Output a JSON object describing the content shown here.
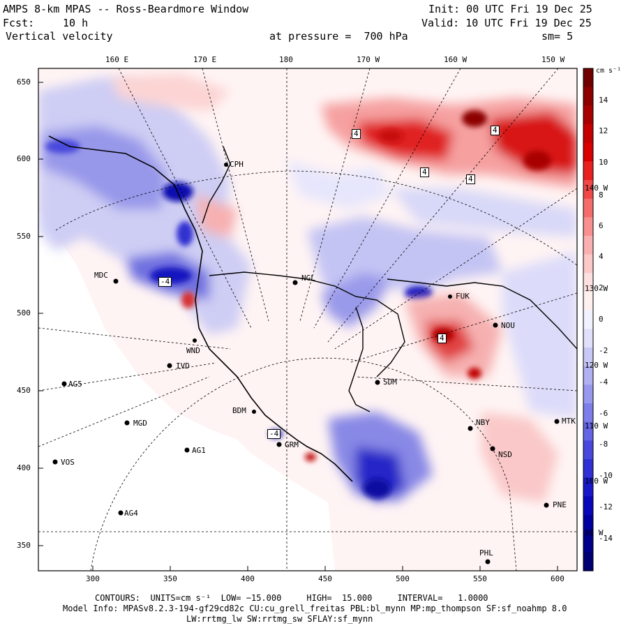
{
  "header": {
    "title": "AMPS 8-km MPAS -- Ross-Beardmore Window",
    "init": "Init: 00 UTC Fri 19 Dec 25",
    "fcst_label": "Fcst:",
    "fcst_value": "10 h",
    "valid": "Valid: 10 UTC Fri 19 Dec 25",
    "field": "Vertical velocity",
    "level": "at pressure =  700 hPa",
    "smooth": "sm= 5"
  },
  "axes": {
    "top_lon": [
      "160 E",
      "170 E",
      "180",
      "170 W",
      "160 W",
      "150 W"
    ],
    "left_y": [
      "650",
      "600",
      "550",
      "500",
      "450",
      "400",
      "350"
    ],
    "bottom_x": [
      "300",
      "350",
      "400",
      "450",
      "500",
      "550",
      "600"
    ],
    "right_lon": [
      "140 W",
      "130 W",
      "120 W",
      "110 W",
      "100 W",
      "90 W"
    ]
  },
  "colorbar": {
    "units": "cm s⁻¹",
    "ticks": [
      "14",
      "12",
      "10",
      "8",
      "6",
      "4",
      "2",
      "0",
      "-2",
      "-4",
      "-6",
      "-8",
      "-10",
      "-12",
      "-14"
    ],
    "colors": [
      "#700000",
      "#8c0000",
      "#a80000",
      "#c40000",
      "#d80000",
      "#e82020",
      "#f04848",
      "#f46c6c",
      "#f89090",
      "#fab0b0",
      "#fcc8c8",
      "#fde0e0",
      "#fff0f0",
      "#f2f2ff",
      "#e0e0fa",
      "#c8c8f6",
      "#b0b0f2",
      "#9898ee",
      "#7e7eea",
      "#6464e4",
      "#4848dc",
      "#3030d4",
      "#1818c8",
      "#0808b8",
      "#0000a0",
      "#000088",
      "#000070"
    ]
  },
  "stations": [
    "CPH",
    "MDC",
    "NGL",
    "WND",
    "IVD",
    "AG5",
    "SDM",
    "BDM",
    "GRM",
    "AG1",
    "MGD",
    "VOS",
    "AG4",
    "NBY",
    "NSD",
    "MTK",
    "PNE",
    "PHL",
    "FUK",
    "NOU"
  ],
  "contour_labels": [
    "4",
    "4",
    "4",
    "4",
    "-4",
    "-4",
    "4"
  ],
  "footer": {
    "contours": "CONTOURS:  UNITS=cm s⁻¹  LOW= −15.000     HIGH=  15.000     INTERVAL=   1.0000",
    "model_info": "Model Info: MPASv8.2.3-194-gf29cd82c CU:cu_grell_freitas PBL:bl_mynn MP:mp_thompson SF:sf_noahmp 8.0",
    "model_info2": "LW:rrtmg_lw SW:rrtmg_sw SFLAY:sf_mynn"
  }
}
